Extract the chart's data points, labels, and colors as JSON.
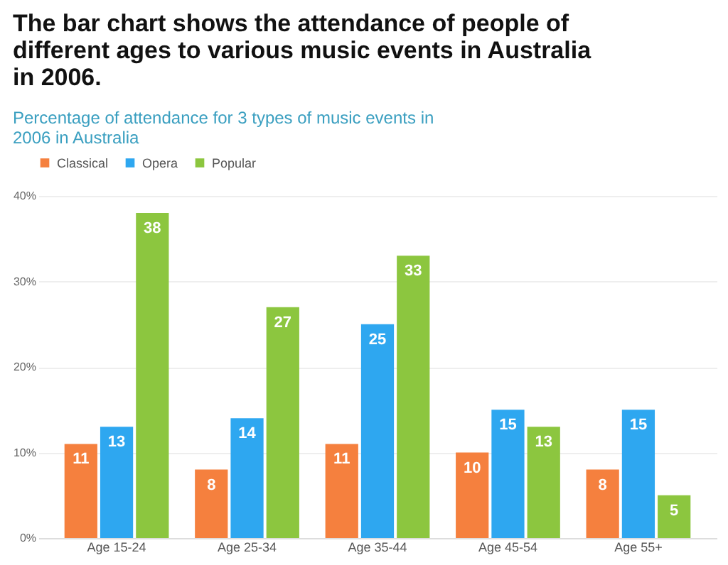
{
  "chart_data": {
    "type": "bar",
    "title": [
      "The bar chart shows the  attendance of people of",
      "different ages to various music events in Australia",
      "in 2006."
    ],
    "subtitle": [
      "Percentage of attendance for 3 types of music events in",
      "2006 in Australia"
    ],
    "categories": [
      "Age 15-24",
      "Age 25-34",
      "Age 35-44",
      "Age 45-54",
      "Age 55+"
    ],
    "series": [
      {
        "name": "Classical",
        "color": "#f5803e",
        "values": [
          11,
          8,
          11,
          10,
          8
        ]
      },
      {
        "name": "Opera",
        "color": "#2ea7f0",
        "values": [
          13,
          14,
          25,
          15,
          15
        ]
      },
      {
        "name": "Popular",
        "color": "#8cc63f",
        "values": [
          38,
          27,
          33,
          13,
          5
        ]
      }
    ],
    "ylim": [
      0,
      40
    ],
    "yticks": [
      {
        "value": 0,
        "label": "0%"
      },
      {
        "value": 10,
        "label": "10%"
      },
      {
        "value": 20,
        "label": "20%"
      },
      {
        "value": 30,
        "label": "30%"
      },
      {
        "value": 40,
        "label": "40%"
      }
    ],
    "grid": "y",
    "legend": "top",
    "data_labels": true
  }
}
